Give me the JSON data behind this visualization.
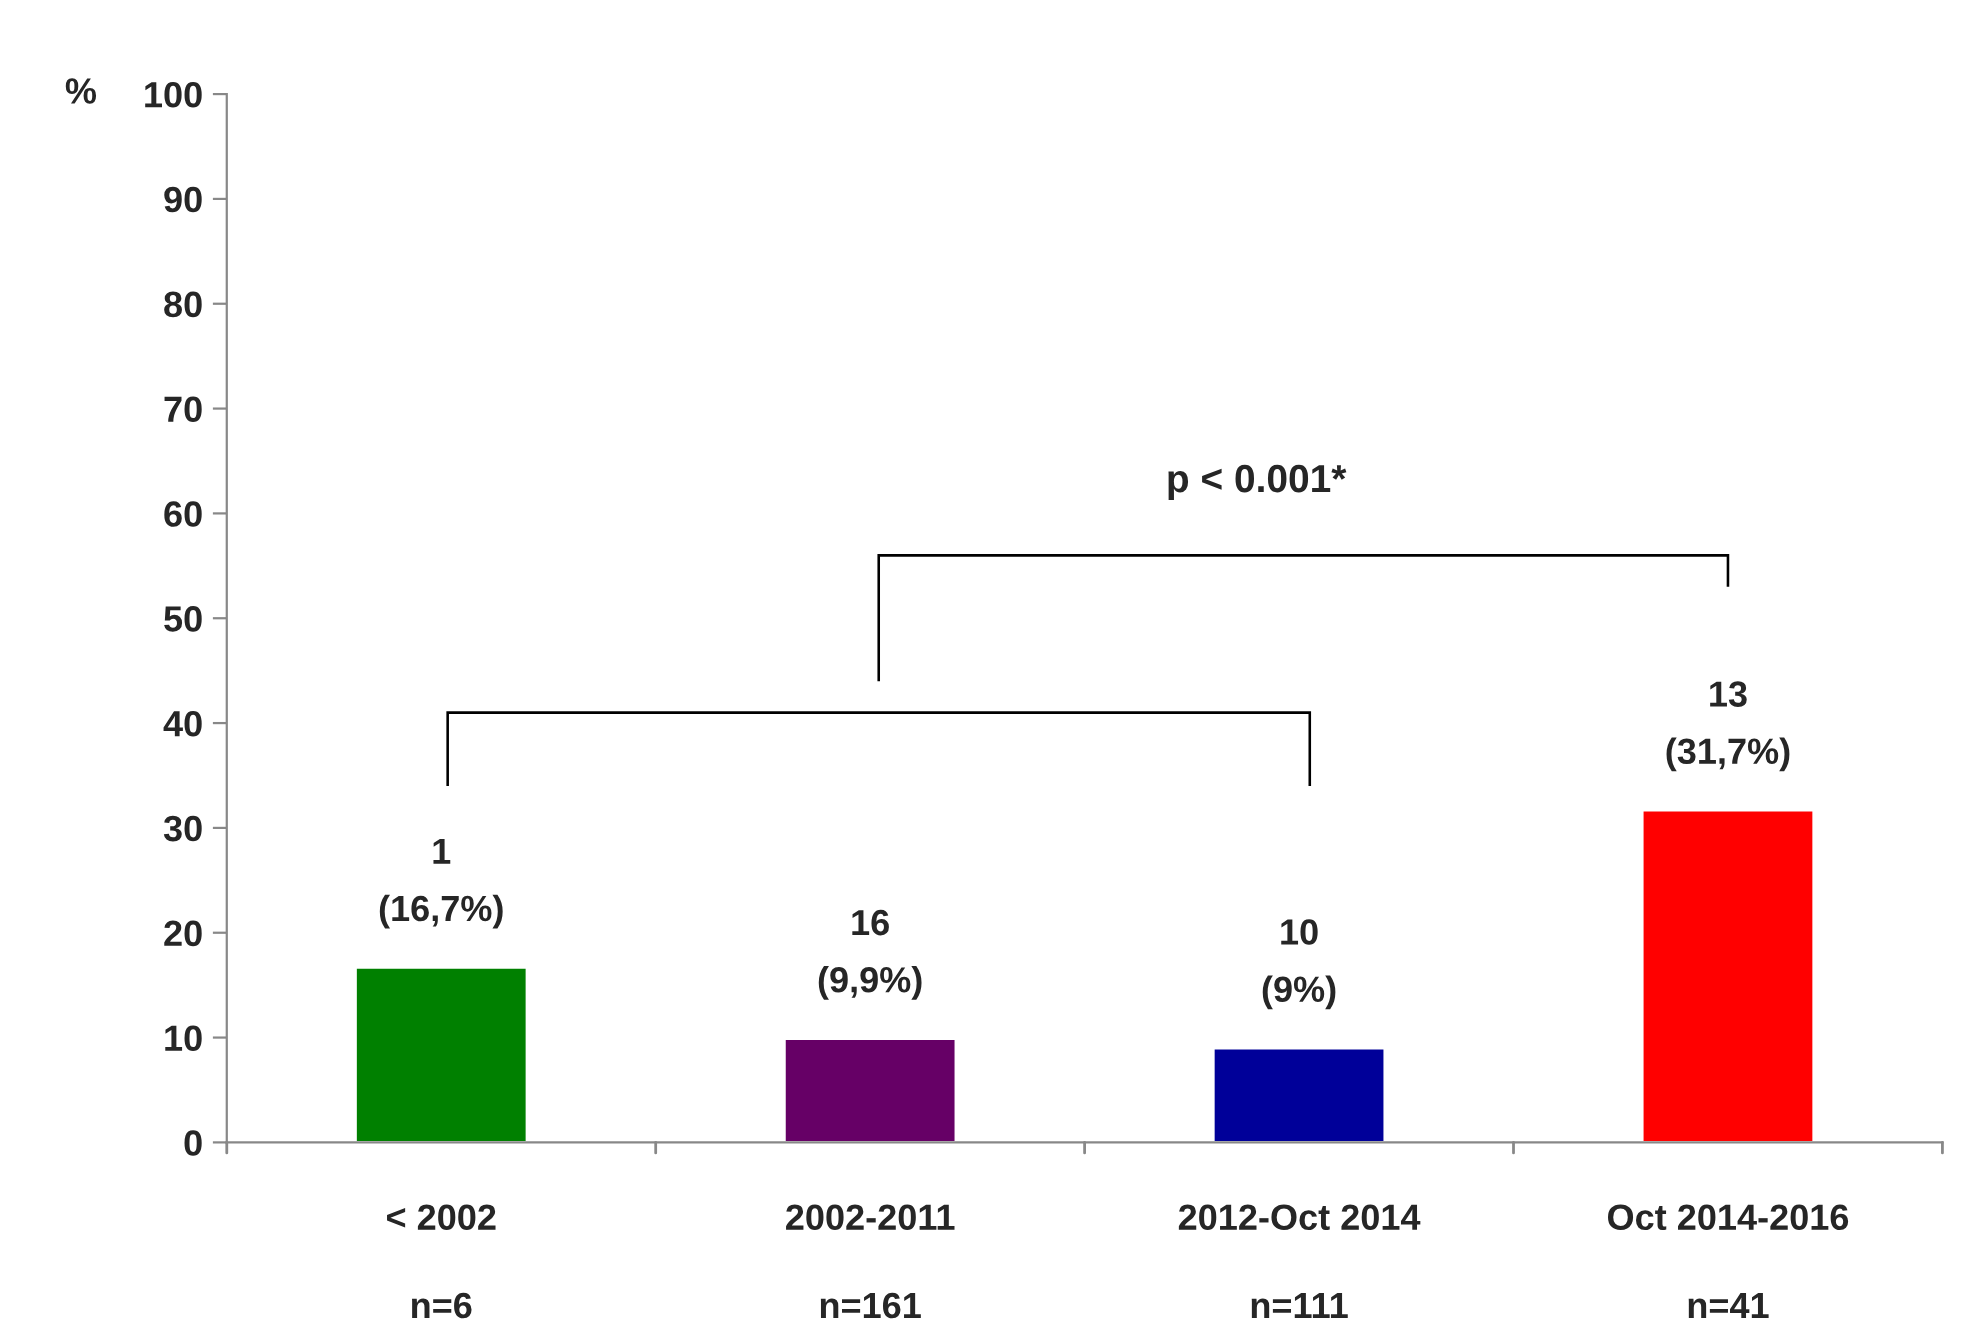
{
  "chart_data": {
    "type": "bar",
    "ylabel": "%",
    "categories": [
      "< 2002\n\nn=6",
      "2002-2011\n\nn=161",
      "2012-Oct 2014\n\nn=111",
      "Oct 2014-2016\n\nn=41"
    ],
    "values": [
      16.7,
      9.9,
      9,
      31.7
    ],
    "colors": [
      "#008000",
      "#660066",
      "#000099",
      "#ff0000"
    ],
    "value_labels": [
      "1\n(16,7%)",
      "16\n(9,9%)",
      "10\n(9%)",
      "13\n(31,7%)"
    ],
    "ylim": [
      0,
      100
    ],
    "yticks": [
      0,
      10,
      20,
      30,
      40,
      50,
      60,
      70,
      80,
      90,
      100
    ],
    "annotations": [
      "p < 0.001*"
    ],
    "grid": false,
    "legend": false
  }
}
